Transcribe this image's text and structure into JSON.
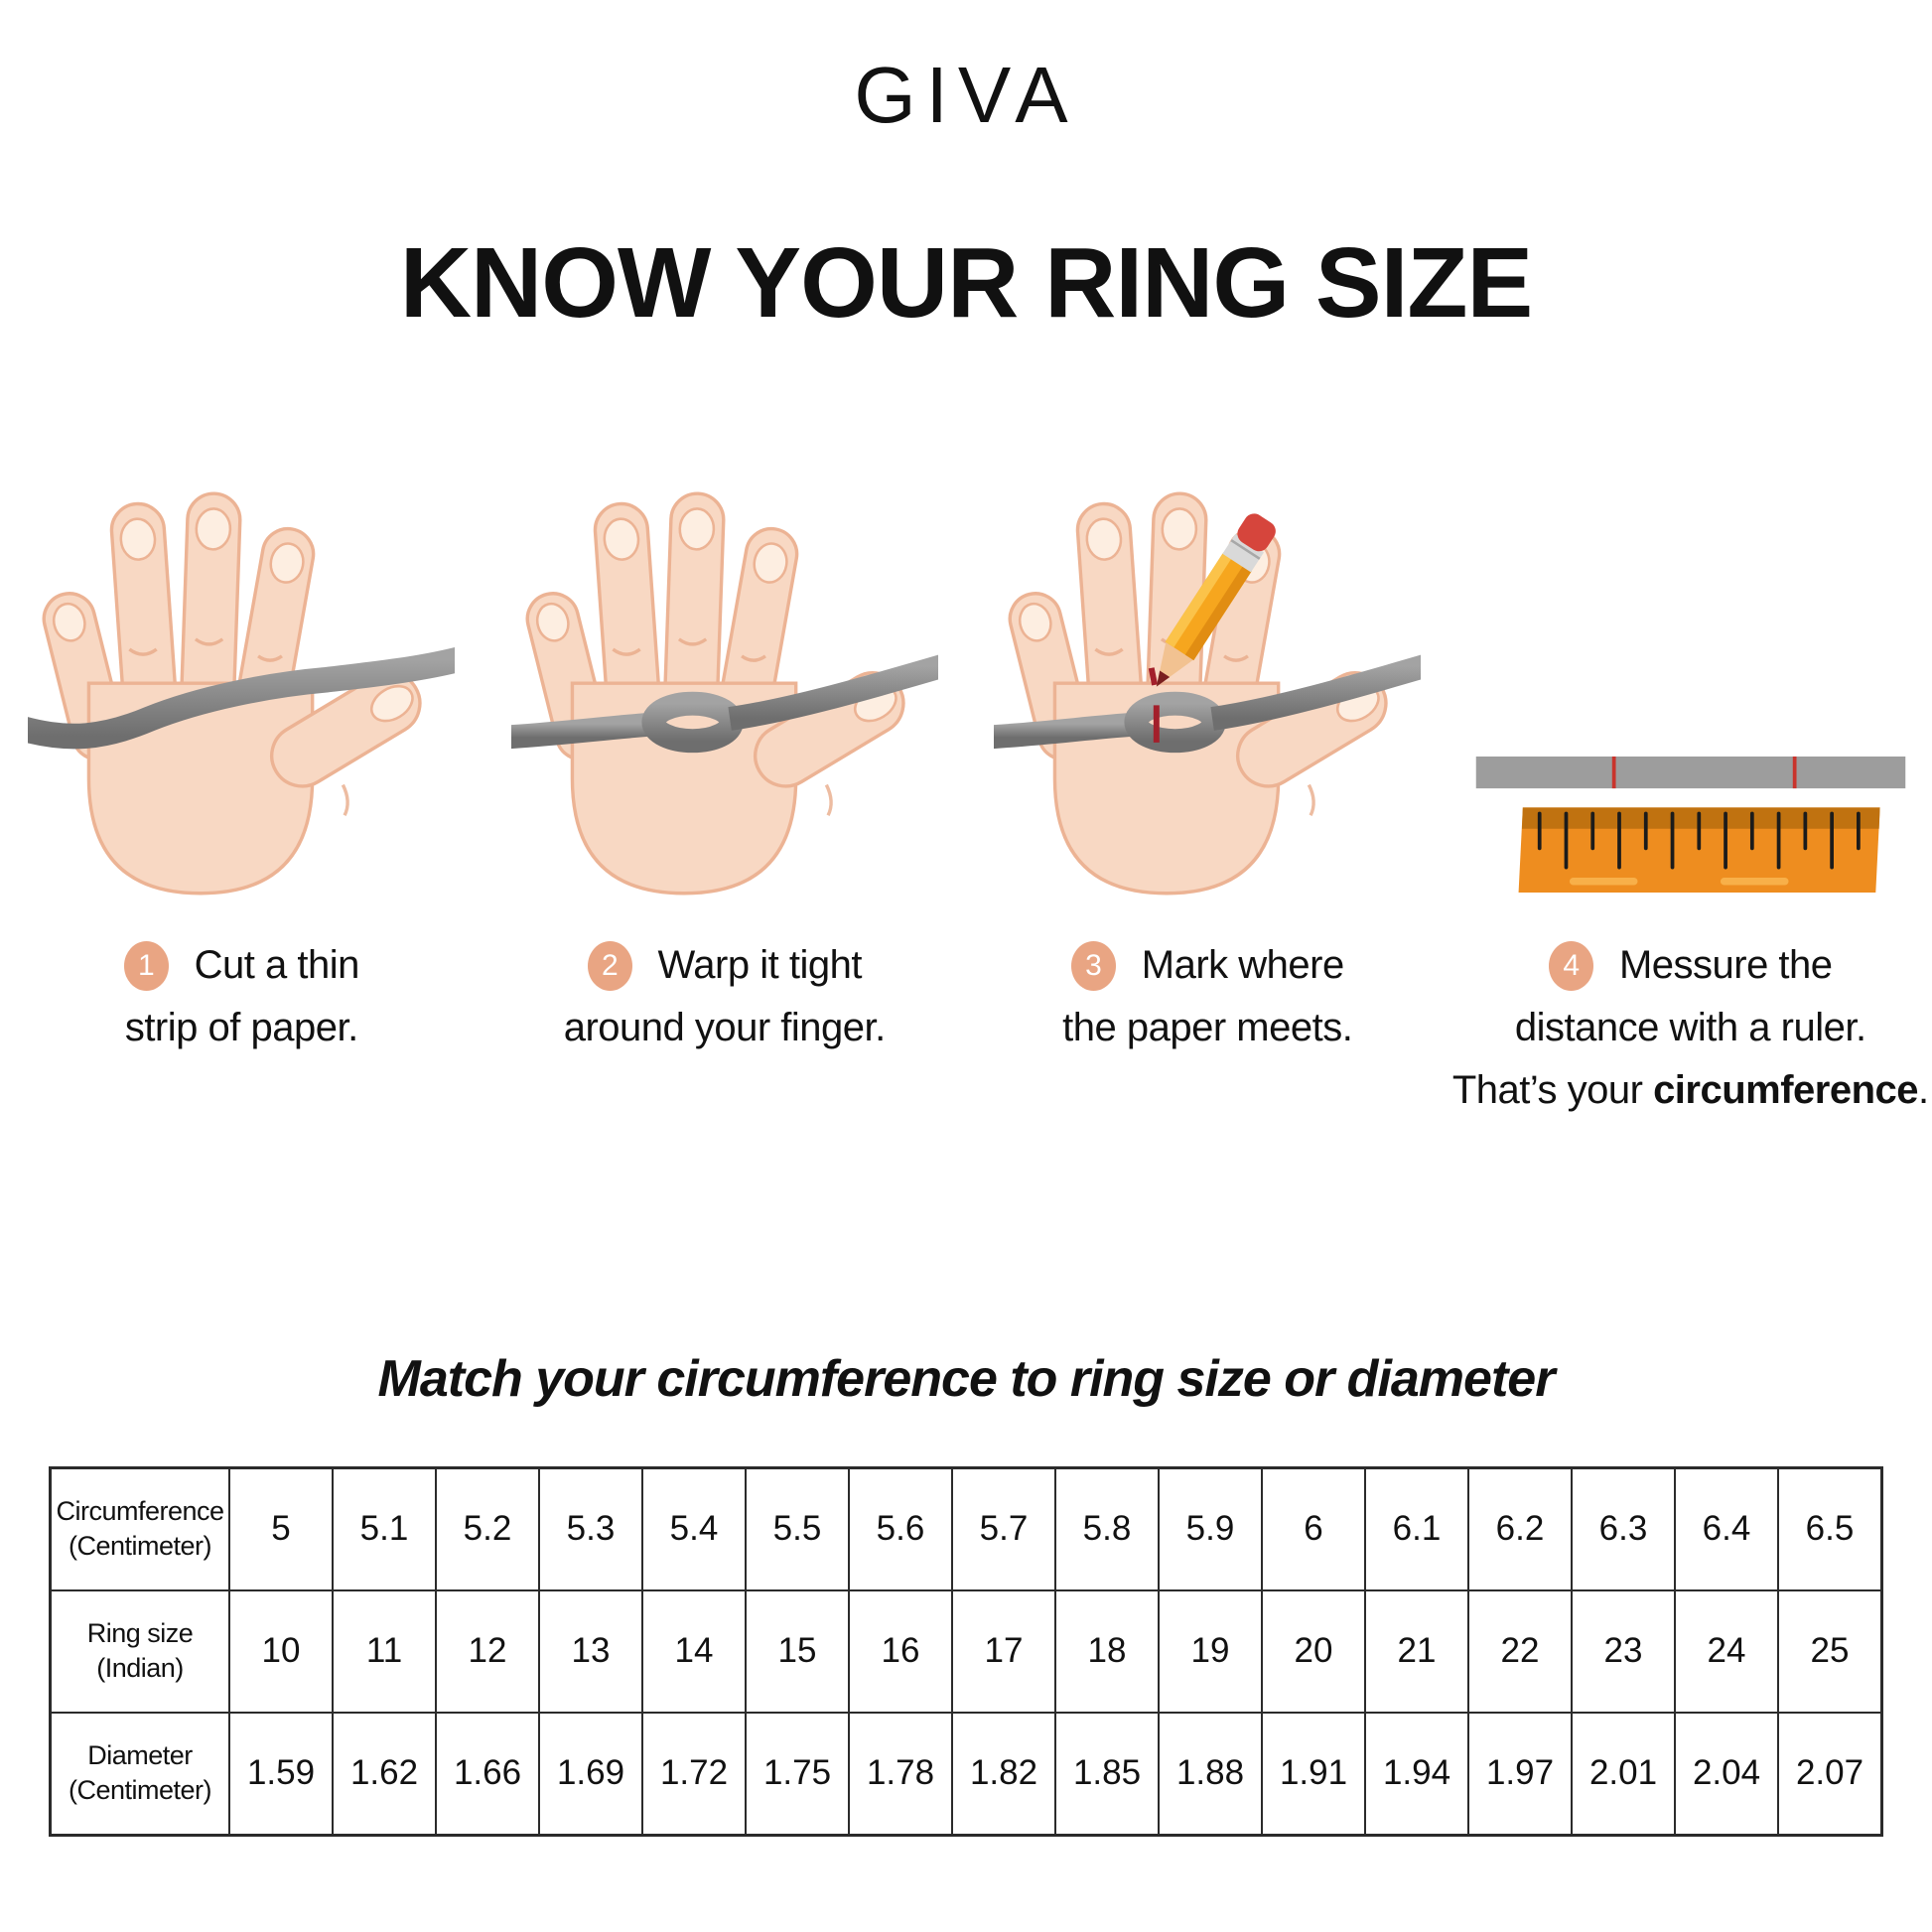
{
  "logo": "GIVA",
  "title": "KNOW YOUR RING SIZE",
  "steps": [
    {
      "num": "1",
      "line1": "Cut a thin",
      "line2": "strip of paper."
    },
    {
      "num": "2",
      "line1": "Warp it tight",
      "line2": "around your finger."
    },
    {
      "num": "3",
      "line1": "Mark where",
      "line2": "the paper meets."
    },
    {
      "num": "4",
      "line1": "Messure the",
      "line2": "distance with a ruler.",
      "line3_prefix": "That’s your ",
      "line3_bold": "circumference",
      "line3_suffix": "."
    }
  ],
  "subtitle": "Match your circumference to ring size or diameter",
  "table": {
    "rows": [
      {
        "header_lines": [
          "Circumference",
          "(Centimeter)"
        ],
        "values": [
          "5",
          "5.1",
          "5.2",
          "5.3",
          "5.4",
          "5.5",
          "5.6",
          "5.7",
          "5.8",
          "5.9",
          "6",
          "6.1",
          "6.2",
          "6.3",
          "6.4",
          "6.5"
        ]
      },
      {
        "header_lines": [
          "Ring size",
          "(Indian)"
        ],
        "values": [
          "10",
          "11",
          "12",
          "13",
          "14",
          "15",
          "16",
          "17",
          "18",
          "19",
          "20",
          "21",
          "22",
          "23",
          "24",
          "25"
        ]
      },
      {
        "header_lines": [
          "Diameter",
          "(Centimeter)"
        ],
        "values": [
          "1.59",
          "1.62",
          "1.66",
          "1.69",
          "1.72",
          "1.75",
          "1.78",
          "1.82",
          "1.85",
          "1.88",
          "1.91",
          "1.94",
          "1.97",
          "2.01",
          "2.04",
          "2.07"
        ]
      }
    ]
  },
  "colors": {
    "badge": "#e9a583",
    "text": "#111111",
    "skin": "#f8d8c3",
    "paper_gray": "#9d9d9d",
    "mark_red": "#c9342c",
    "ruler_orange": "#ee8d1f",
    "pencil_yellow": "#f6a61e",
    "eraser_red": "#d6453c"
  }
}
